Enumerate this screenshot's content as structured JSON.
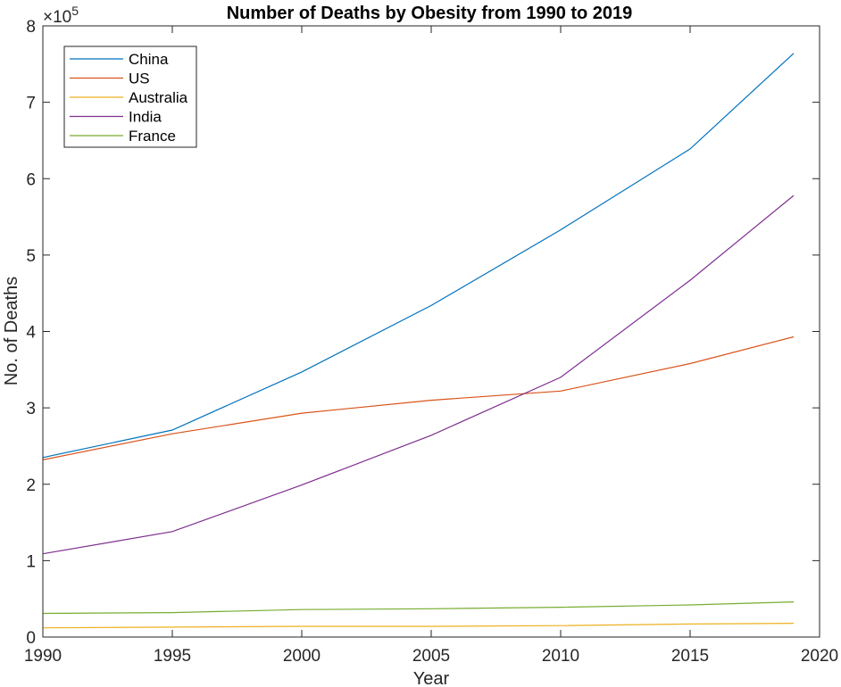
{
  "chart_data": {
    "type": "line",
    "title": "Number of Deaths by Obesity from 1990 to 2019",
    "xlabel": "Year",
    "ylabel": "No. of Deaths",
    "y_exponent_base": "×10",
    "y_exponent_power": "5",
    "xlim": [
      1990,
      2020
    ],
    "ylim": [
      0,
      8
    ],
    "xticks": [
      1990,
      1995,
      2000,
      2005,
      2010,
      2015,
      2020
    ],
    "yticks": [
      0,
      1,
      2,
      3,
      4,
      5,
      6,
      7,
      8
    ],
    "grid": false,
    "legend_position": "top-left",
    "x": [
      1990,
      1995,
      2000,
      2005,
      2010,
      2015,
      2019
    ],
    "series": [
      {
        "name": "China",
        "color": "#0072BD",
        "values": [
          2.35,
          2.71,
          3.47,
          4.34,
          5.33,
          6.39,
          7.64
        ]
      },
      {
        "name": "US",
        "color": "#D95319",
        "values": [
          2.32,
          2.66,
          2.93,
          3.1,
          3.22,
          3.58,
          3.93
        ]
      },
      {
        "name": "Australia",
        "color": "#EDB120",
        "values": [
          0.12,
          0.13,
          0.14,
          0.14,
          0.15,
          0.17,
          0.18
        ]
      },
      {
        "name": "India",
        "color": "#7E2F8E",
        "values": [
          1.09,
          1.38,
          1.99,
          2.64,
          3.4,
          4.67,
          5.78
        ]
      },
      {
        "name": "France",
        "color": "#77AC30",
        "values": [
          0.31,
          0.32,
          0.36,
          0.37,
          0.39,
          0.42,
          0.46
        ]
      }
    ]
  }
}
